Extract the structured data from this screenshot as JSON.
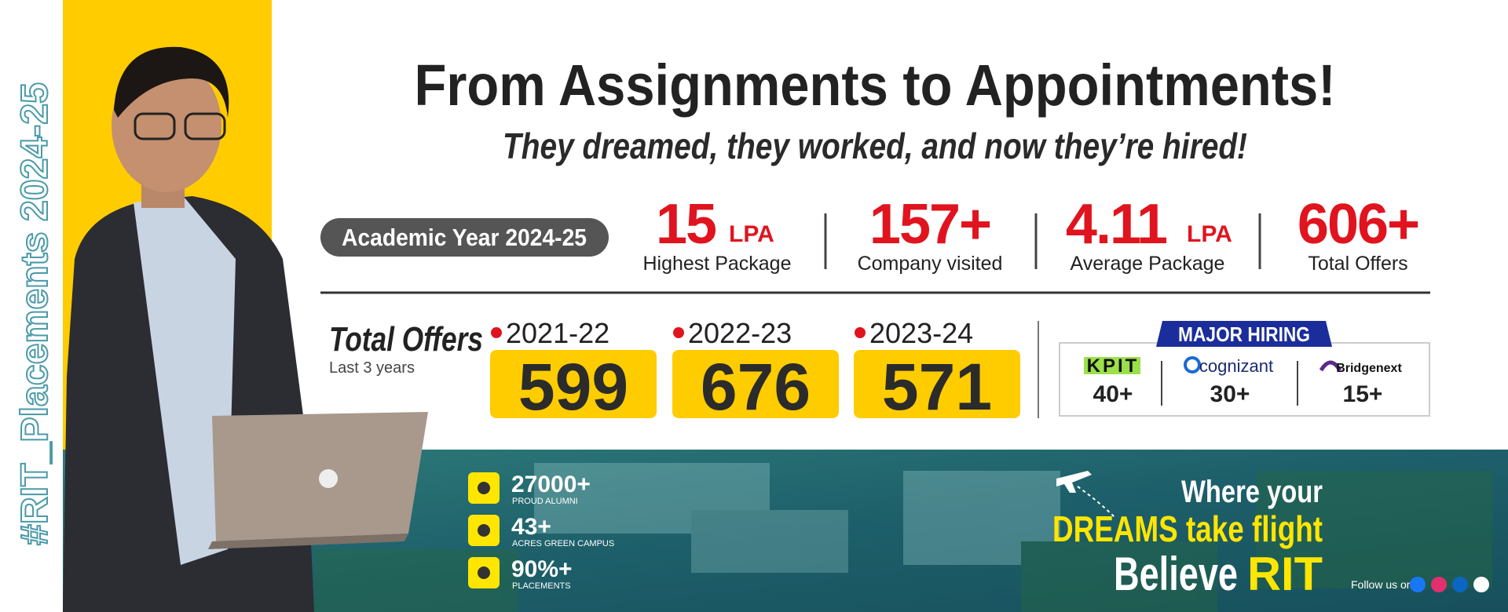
{
  "hashtag": "#RIT_Placements 2024-25",
  "title": "From Assignments to Appointments!",
  "subtitle": "They dreamed, they worked, and now they’re hired!",
  "academic_year": "Academic Year 2024-25",
  "stats": [
    {
      "value": "15",
      "unit": "LPA",
      "label": "Highest Package"
    },
    {
      "value": "157+",
      "label": "Company visited"
    },
    {
      "value": "4.11",
      "unit": "LPA",
      "label": "Average Package"
    },
    {
      "value": "606+",
      "label": "Total Offers"
    }
  ],
  "total_offers": {
    "title": "Total Offers",
    "subtitle": "Last 3 years",
    "years": [
      {
        "year": "2021-22",
        "count": "599"
      },
      {
        "year": "2022-23",
        "count": "676"
      },
      {
        "year": "2023-24",
        "count": "571"
      }
    ]
  },
  "major_hiring": {
    "title": "MAJOR HIRING",
    "companies": [
      {
        "name": "KPIT",
        "count": "40+"
      },
      {
        "name": "cognizant",
        "count": "30+"
      },
      {
        "name": "Bridgenext",
        "count": "15+"
      }
    ]
  },
  "facts": [
    {
      "value": "27000+",
      "label": "PROUD ALUMNI"
    },
    {
      "value": "43+",
      "label": "ACRES GREEN CAMPUS"
    },
    {
      "value": "90%+",
      "label": "PLACEMENTS"
    }
  ],
  "tagline": {
    "line1": "Where your",
    "line2": "DREAMS take flight",
    "line3a": "Believe",
    "line3b": "RIT"
  },
  "follow": "Follow us on:"
}
